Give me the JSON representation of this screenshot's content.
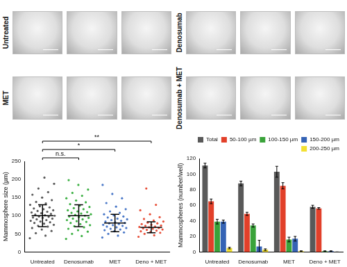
{
  "image_panels": {
    "groups": [
      "Untreated",
      "Denosumab",
      "MET",
      "Denosumab + MET"
    ]
  },
  "chart_data": [
    {
      "type": "scatter",
      "y_label": "Mammosphere size (µm)",
      "categories": [
        "Untreated",
        "Denosumab",
        "MET",
        "Deno + MET"
      ],
      "colors": [
        "#5a5a5a",
        "#3cb043",
        "#4a78c8",
        "#e8503a"
      ],
      "points": [
        [
          38,
          45,
          52,
          58,
          62,
          66,
          70,
          72,
          75,
          78,
          80,
          82,
          84,
          86,
          88,
          90,
          92,
          94,
          95,
          97,
          98,
          100,
          101,
          103,
          105,
          107,
          109,
          111,
          113,
          115,
          118,
          120,
          123,
          126,
          130,
          134,
          138,
          143,
          150,
          158,
          165,
          175,
          188,
          205
        ],
        [
          36,
          44,
          50,
          56,
          60,
          64,
          68,
          71,
          74,
          77,
          80,
          83,
          85,
          88,
          90,
          92,
          94,
          96,
          98,
          100,
          102,
          104,
          106,
          108,
          110,
          112,
          115,
          118,
          121,
          124,
          128,
          132,
          137,
          142,
          148,
          155,
          163,
          172,
          185,
          198
        ],
        [
          40,
          45,
          50,
          54,
          57,
          60,
          62,
          64,
          66,
          68,
          70,
          72,
          74,
          75,
          77,
          79,
          80,
          82,
          84,
          86,
          88,
          90,
          92,
          95,
          98,
          101,
          104,
          108,
          112,
          118,
          125,
          135,
          148,
          160,
          185
        ],
        [
          42,
          46,
          50,
          53,
          55,
          57,
          59,
          61,
          62,
          64,
          65,
          66,
          68,
          69,
          70,
          72,
          73,
          75,
          77,
          79,
          81,
          84,
          87,
          91,
          96,
          104,
          115,
          130,
          175
        ]
      ],
      "means": [
        100,
        100,
        80,
        68
      ],
      "sd": [
        30,
        30,
        24,
        15
      ],
      "ylim": [
        0,
        250
      ],
      "yticks": [
        0,
        50,
        100,
        150,
        200,
        250
      ],
      "grid": false,
      "annotations": [
        {
          "from": "Untreated",
          "to": "Denosumab",
          "text": "n.s."
        },
        {
          "from": "Untreated",
          "to": "MET",
          "text": "*"
        },
        {
          "from": "Untreated",
          "to": "Deno + MET",
          "text": "**"
        }
      ]
    },
    {
      "type": "bar",
      "y_label": "Mammospheres (number/well)",
      "categories": [
        "Untreated",
        "Denosumab",
        "MET",
        "Deno + MET"
      ],
      "series": [
        {
          "name": "Total",
          "color": "#595959",
          "values": [
            111,
            88,
            103,
            58
          ],
          "errors": [
            3,
            3,
            7,
            2
          ]
        },
        {
          "name": "50-100 µm",
          "color": "#e2402a",
          "values": [
            65,
            49,
            85,
            56
          ],
          "errors": [
            3,
            2,
            4,
            1
          ]
        },
        {
          "name": "100-150 µm",
          "color": "#3aa33a",
          "values": [
            39,
            34,
            16,
            1
          ],
          "errors": [
            3,
            2,
            3,
            0.5
          ]
        },
        {
          "name": "150-200 µm",
          "color": "#3563b5",
          "values": [
            39,
            7,
            17,
            1
          ],
          "errors": [
            2,
            8,
            3,
            0.5
          ]
        },
        {
          "name": "200-250 µm",
          "color": "#f2e033",
          "values": [
            5,
            3,
            1,
            0
          ],
          "errors": [
            1,
            1,
            0.5,
            0
          ]
        }
      ],
      "ylim": [
        0,
        120
      ],
      "yticks": [
        0,
        20,
        40,
        60,
        80,
        100,
        120
      ],
      "grid": false,
      "legend": "upper right"
    }
  ]
}
